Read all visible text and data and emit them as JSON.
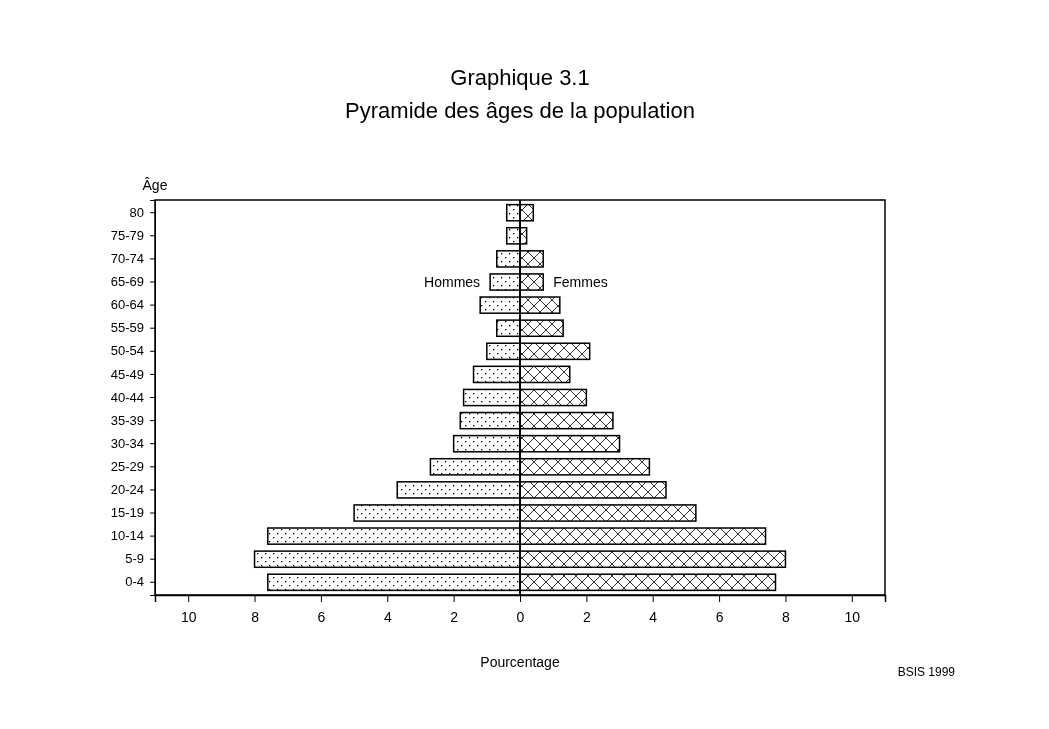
{
  "chart_data": {
    "type": "bar",
    "orientation": "horizontal",
    "stacked": true,
    "title": "Graphique 3.1",
    "subtitle": "Pyramide des âges de la population",
    "xlabel": "Pourcentage",
    "ylabel": "Âge",
    "categories": [
      "80",
      "75-79",
      "70-74",
      "65-69",
      "60-64",
      "55-59",
      "50-54",
      "45-49",
      "40-44",
      "35-39",
      "30-34",
      "25-29",
      "20-24",
      "15-19",
      "10-14",
      "5-9",
      "0-4"
    ],
    "series": [
      {
        "name": "Hommes",
        "color": "#000000",
        "values": [
          -0.4,
          -0.4,
          -0.7,
          -0.9,
          -1.2,
          -0.7,
          -1.0,
          -1.4,
          -1.7,
          -1.8,
          -2.0,
          -2.7,
          -3.7,
          -5.0,
          -7.6,
          -8.0,
          -7.6
        ]
      },
      {
        "name": "Femmes",
        "color": "#000000",
        "values": [
          0.4,
          0.2,
          0.7,
          0.7,
          1.2,
          1.3,
          2.1,
          1.5,
          2.0,
          2.8,
          3.0,
          3.9,
          4.4,
          5.3,
          7.4,
          8.0,
          7.7
        ]
      }
    ],
    "xlim": [
      -11,
      11
    ],
    "xticks": [
      {
        "value": -10,
        "label": "10"
      },
      {
        "value": -8,
        "label": "8"
      },
      {
        "value": -6,
        "label": "6"
      },
      {
        "value": -4,
        "label": "4"
      },
      {
        "value": -2,
        "label": "2"
      },
      0,
      2,
      4,
      6,
      8,
      10
    ],
    "annotations": [
      "BSIS 1999"
    ]
  }
}
